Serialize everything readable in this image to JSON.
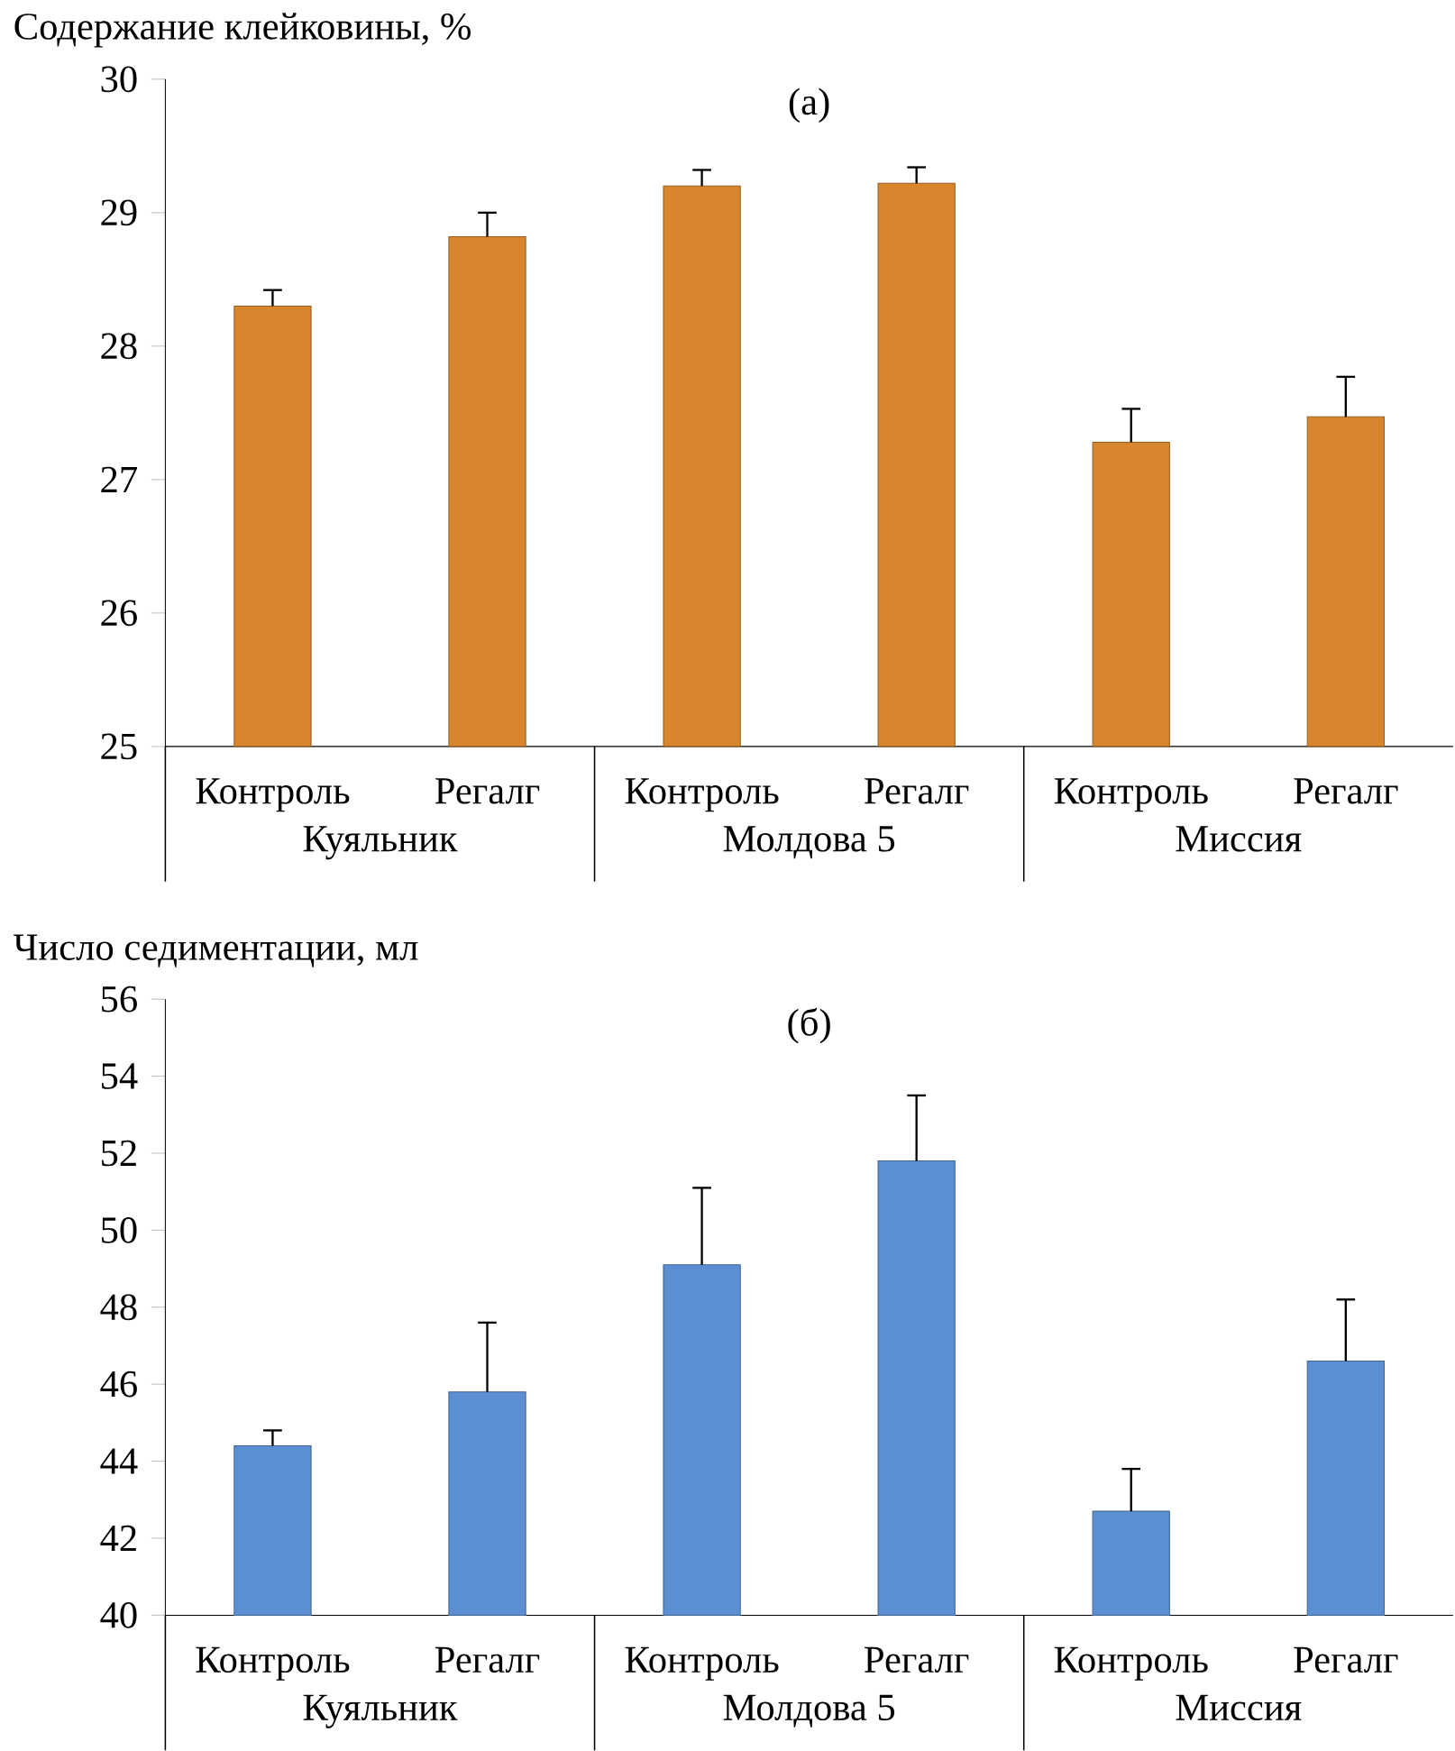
{
  "chart_data": [
    {
      "type": "bar",
      "title": "(а)",
      "ylabel": "Содержание клейковины, %",
      "categories": [
        "Контроль",
        "Регалг",
        "Контроль",
        "Регалг",
        "Контроль",
        "Регалг"
      ],
      "values": [
        28.3,
        28.82,
        29.2,
        29.22,
        27.28,
        27.47
      ],
      "errors": [
        [
          28.3,
          28.42
        ],
        [
          28.82,
          29.0
        ],
        [
          29.2,
          29.32
        ],
        [
          29.22,
          29.34
        ],
        [
          27.28,
          27.53
        ],
        [
          27.47,
          27.77
        ]
      ],
      "color": "#d8862e",
      "ylim": [
        25,
        30
      ],
      "yticks": [
        25,
        26,
        27,
        28,
        29,
        30
      ],
      "annotations": [
        "Куяльник",
        "Молдова 5",
        "Миссия"
      ]
    },
    {
      "type": "bar",
      "title": "(б)",
      "ylabel": "Число седиментации, мл",
      "categories": [
        "Контроль",
        "Регалг",
        "Контроль",
        "Регалг",
        "Контроль",
        "Регалг"
      ],
      "values": [
        44.4,
        45.8,
        49.1,
        51.8,
        42.7,
        46.6
      ],
      "errors": [
        [
          44.4,
          44.8
        ],
        [
          45.8,
          47.6
        ],
        [
          49.1,
          51.1
        ],
        [
          51.8,
          53.5
        ],
        [
          42.7,
          43.8
        ],
        [
          46.6,
          48.2
        ]
      ],
      "color": "#5b8fd2",
      "ylim": [
        40,
        56
      ],
      "yticks": [
        40,
        42,
        44,
        46,
        48,
        50,
        52,
        54,
        56
      ],
      "annotations": [
        "Куяльник",
        "Молдова 5",
        "Миссия"
      ]
    }
  ]
}
